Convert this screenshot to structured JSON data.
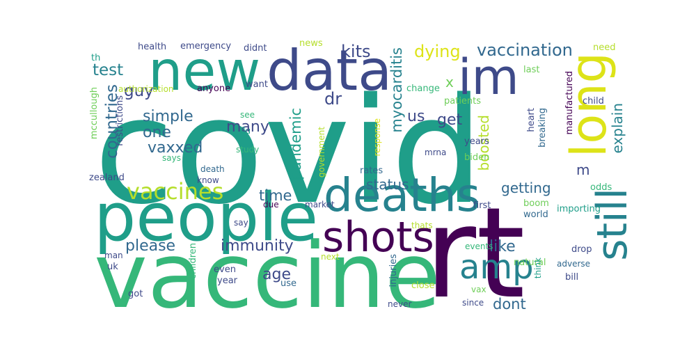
{
  "palette": {
    "background": "#ffffff",
    "dark_purple": "#440154",
    "indigo": "#3e4a89",
    "blue": "#31688e",
    "teal": "#26828e",
    "green_teal": "#1f9e89",
    "green": "#35b779",
    "light_green": "#6ece58",
    "lime": "#b5de2b",
    "yellow": "#dde318"
  },
  "words": [
    {
      "text": "covid",
      "color": "#1f9e89"
    },
    {
      "text": "rt",
      "color": "#440154"
    },
    {
      "text": "vaccine",
      "color": "#35b779"
    },
    {
      "text": "people",
      "color": "#1f9e89"
    },
    {
      "text": "new",
      "color": "#1f9e89"
    },
    {
      "text": "data",
      "color": "#3e4a89"
    },
    {
      "text": "im",
      "color": "#3e4a89"
    },
    {
      "text": "deaths",
      "color": "#26828e"
    },
    {
      "text": "long",
      "color": "#dde318"
    },
    {
      "text": "still",
      "color": "#26828e"
    },
    {
      "text": "shots",
      "color": "#440154"
    },
    {
      "text": "amp",
      "color": "#26828e"
    },
    {
      "text": "vaccines",
      "color": "#b5de2b"
    },
    {
      "text": "vaccination",
      "color": "#31688e"
    },
    {
      "text": "myocarditis",
      "color": "#26828e"
    },
    {
      "text": "kits",
      "color": "#3e4a89"
    },
    {
      "text": "dying",
      "color": "#dde318"
    },
    {
      "text": "test",
      "color": "#26828e"
    },
    {
      "text": "guy",
      "color": "#3e4a89"
    },
    {
      "text": "countries",
      "color": "#31688e"
    },
    {
      "text": "simple",
      "color": "#31688e"
    },
    {
      "text": "one",
      "color": "#31688e"
    },
    {
      "text": "vaxxed",
      "color": "#31688e"
    },
    {
      "text": "many",
      "color": "#3e4a89"
    },
    {
      "text": "pandemic",
      "color": "#1f9e89"
    },
    {
      "text": "dr",
      "color": "#3e4a89"
    },
    {
      "text": "us",
      "color": "#3e4a89"
    },
    {
      "text": "get",
      "color": "#3e4a89"
    },
    {
      "text": "boosted",
      "color": "#b5de2b"
    },
    {
      "text": "explain",
      "color": "#26828e"
    },
    {
      "text": "time",
      "color": "#31688e"
    },
    {
      "text": "status",
      "color": "#31688e"
    },
    {
      "text": "getting",
      "color": "#31688e"
    },
    {
      "text": "m",
      "color": "#3e4a89"
    },
    {
      "text": "please",
      "color": "#31688e"
    },
    {
      "text": "immunity",
      "color": "#3e4a89"
    },
    {
      "text": "like",
      "color": "#31688e"
    },
    {
      "text": "age",
      "color": "#3e4a89"
    },
    {
      "text": "dont",
      "color": "#31688e"
    },
    {
      "text": "x",
      "color": "#6ece58"
    },
    {
      "text": "health",
      "color": "#3e4a89"
    },
    {
      "text": "emergency",
      "color": "#3e4a89"
    },
    {
      "text": "didnt",
      "color": "#3e4a89"
    },
    {
      "text": "news",
      "color": "#b5de2b"
    },
    {
      "text": "need",
      "color": "#b5de2b"
    },
    {
      "text": "th",
      "color": "#1f9e89"
    },
    {
      "text": "last",
      "color": "#6ece58"
    },
    {
      "text": "authorization",
      "color": "#b5de2b"
    },
    {
      "text": "anyone",
      "color": "#440154"
    },
    {
      "text": "want",
      "color": "#3e4a89"
    },
    {
      "text": "change",
      "color": "#35b779"
    },
    {
      "text": "patients",
      "color": "#6ece58"
    },
    {
      "text": "child",
      "color": "#3e4a89"
    },
    {
      "text": "mccullough",
      "color": "#6ece58"
    },
    {
      "text": "restrictions",
      "color": "#3e4a89"
    },
    {
      "text": "manufactured",
      "color": "#440154"
    },
    {
      "text": "heart",
      "color": "#3e4a89"
    },
    {
      "text": "breaking",
      "color": "#31688e"
    },
    {
      "text": "see",
      "color": "#35b779"
    },
    {
      "text": "flu",
      "color": "#1f9e89"
    },
    {
      "text": "study",
      "color": "#35b779"
    },
    {
      "text": "response",
      "color": "#dde318"
    },
    {
      "text": "government",
      "color": "#b5de2b"
    },
    {
      "text": "mrna",
      "color": "#3e4a89"
    },
    {
      "text": "years",
      "color": "#3e4a89"
    },
    {
      "text": "biden",
      "color": "#6ece58"
    },
    {
      "text": "says",
      "color": "#35b779"
    },
    {
      "text": "zealand",
      "color": "#3e4a89"
    },
    {
      "text": "death",
      "color": "#31688e"
    },
    {
      "text": "know",
      "color": "#3e4a89"
    },
    {
      "text": "rates",
      "color": "#31688e"
    },
    {
      "text": "due",
      "color": "#440154"
    },
    {
      "text": "market",
      "color": "#3e4a89"
    },
    {
      "text": "first",
      "color": "#3e4a89"
    },
    {
      "text": "odds",
      "color": "#35b779"
    },
    {
      "text": "say",
      "color": "#3e4a89"
    },
    {
      "text": "boom",
      "color": "#6ece58"
    },
    {
      "text": "world",
      "color": "#31688e"
    },
    {
      "text": "importing",
      "color": "#1f9e89"
    },
    {
      "text": "thats",
      "color": "#b5de2b"
    },
    {
      "text": "children",
      "color": "#35b779"
    },
    {
      "text": "man",
      "color": "#3e4a89"
    },
    {
      "text": "uk",
      "color": "#3e4a89"
    },
    {
      "text": "next",
      "color": "#b5de2b"
    },
    {
      "text": "injuries",
      "color": "#31688e"
    },
    {
      "text": "events",
      "color": "#35b779"
    },
    {
      "text": "natural",
      "color": "#6ece58"
    },
    {
      "text": "think",
      "color": "#1f9e89"
    },
    {
      "text": "drop",
      "color": "#3e4a89"
    },
    {
      "text": "adverse",
      "color": "#31688e"
    },
    {
      "text": "bill",
      "color": "#3e4a89"
    },
    {
      "text": "even",
      "color": "#3e4a89"
    },
    {
      "text": "year",
      "color": "#3e4a89"
    },
    {
      "text": "use",
      "color": "#31688e"
    },
    {
      "text": "close",
      "color": "#b5de2b"
    },
    {
      "text": "vax",
      "color": "#6ece58"
    },
    {
      "text": "since",
      "color": "#3e4a89"
    },
    {
      "text": "got",
      "color": "#3e4a89"
    },
    {
      "text": "never",
      "color": "#3e4a89"
    }
  ]
}
